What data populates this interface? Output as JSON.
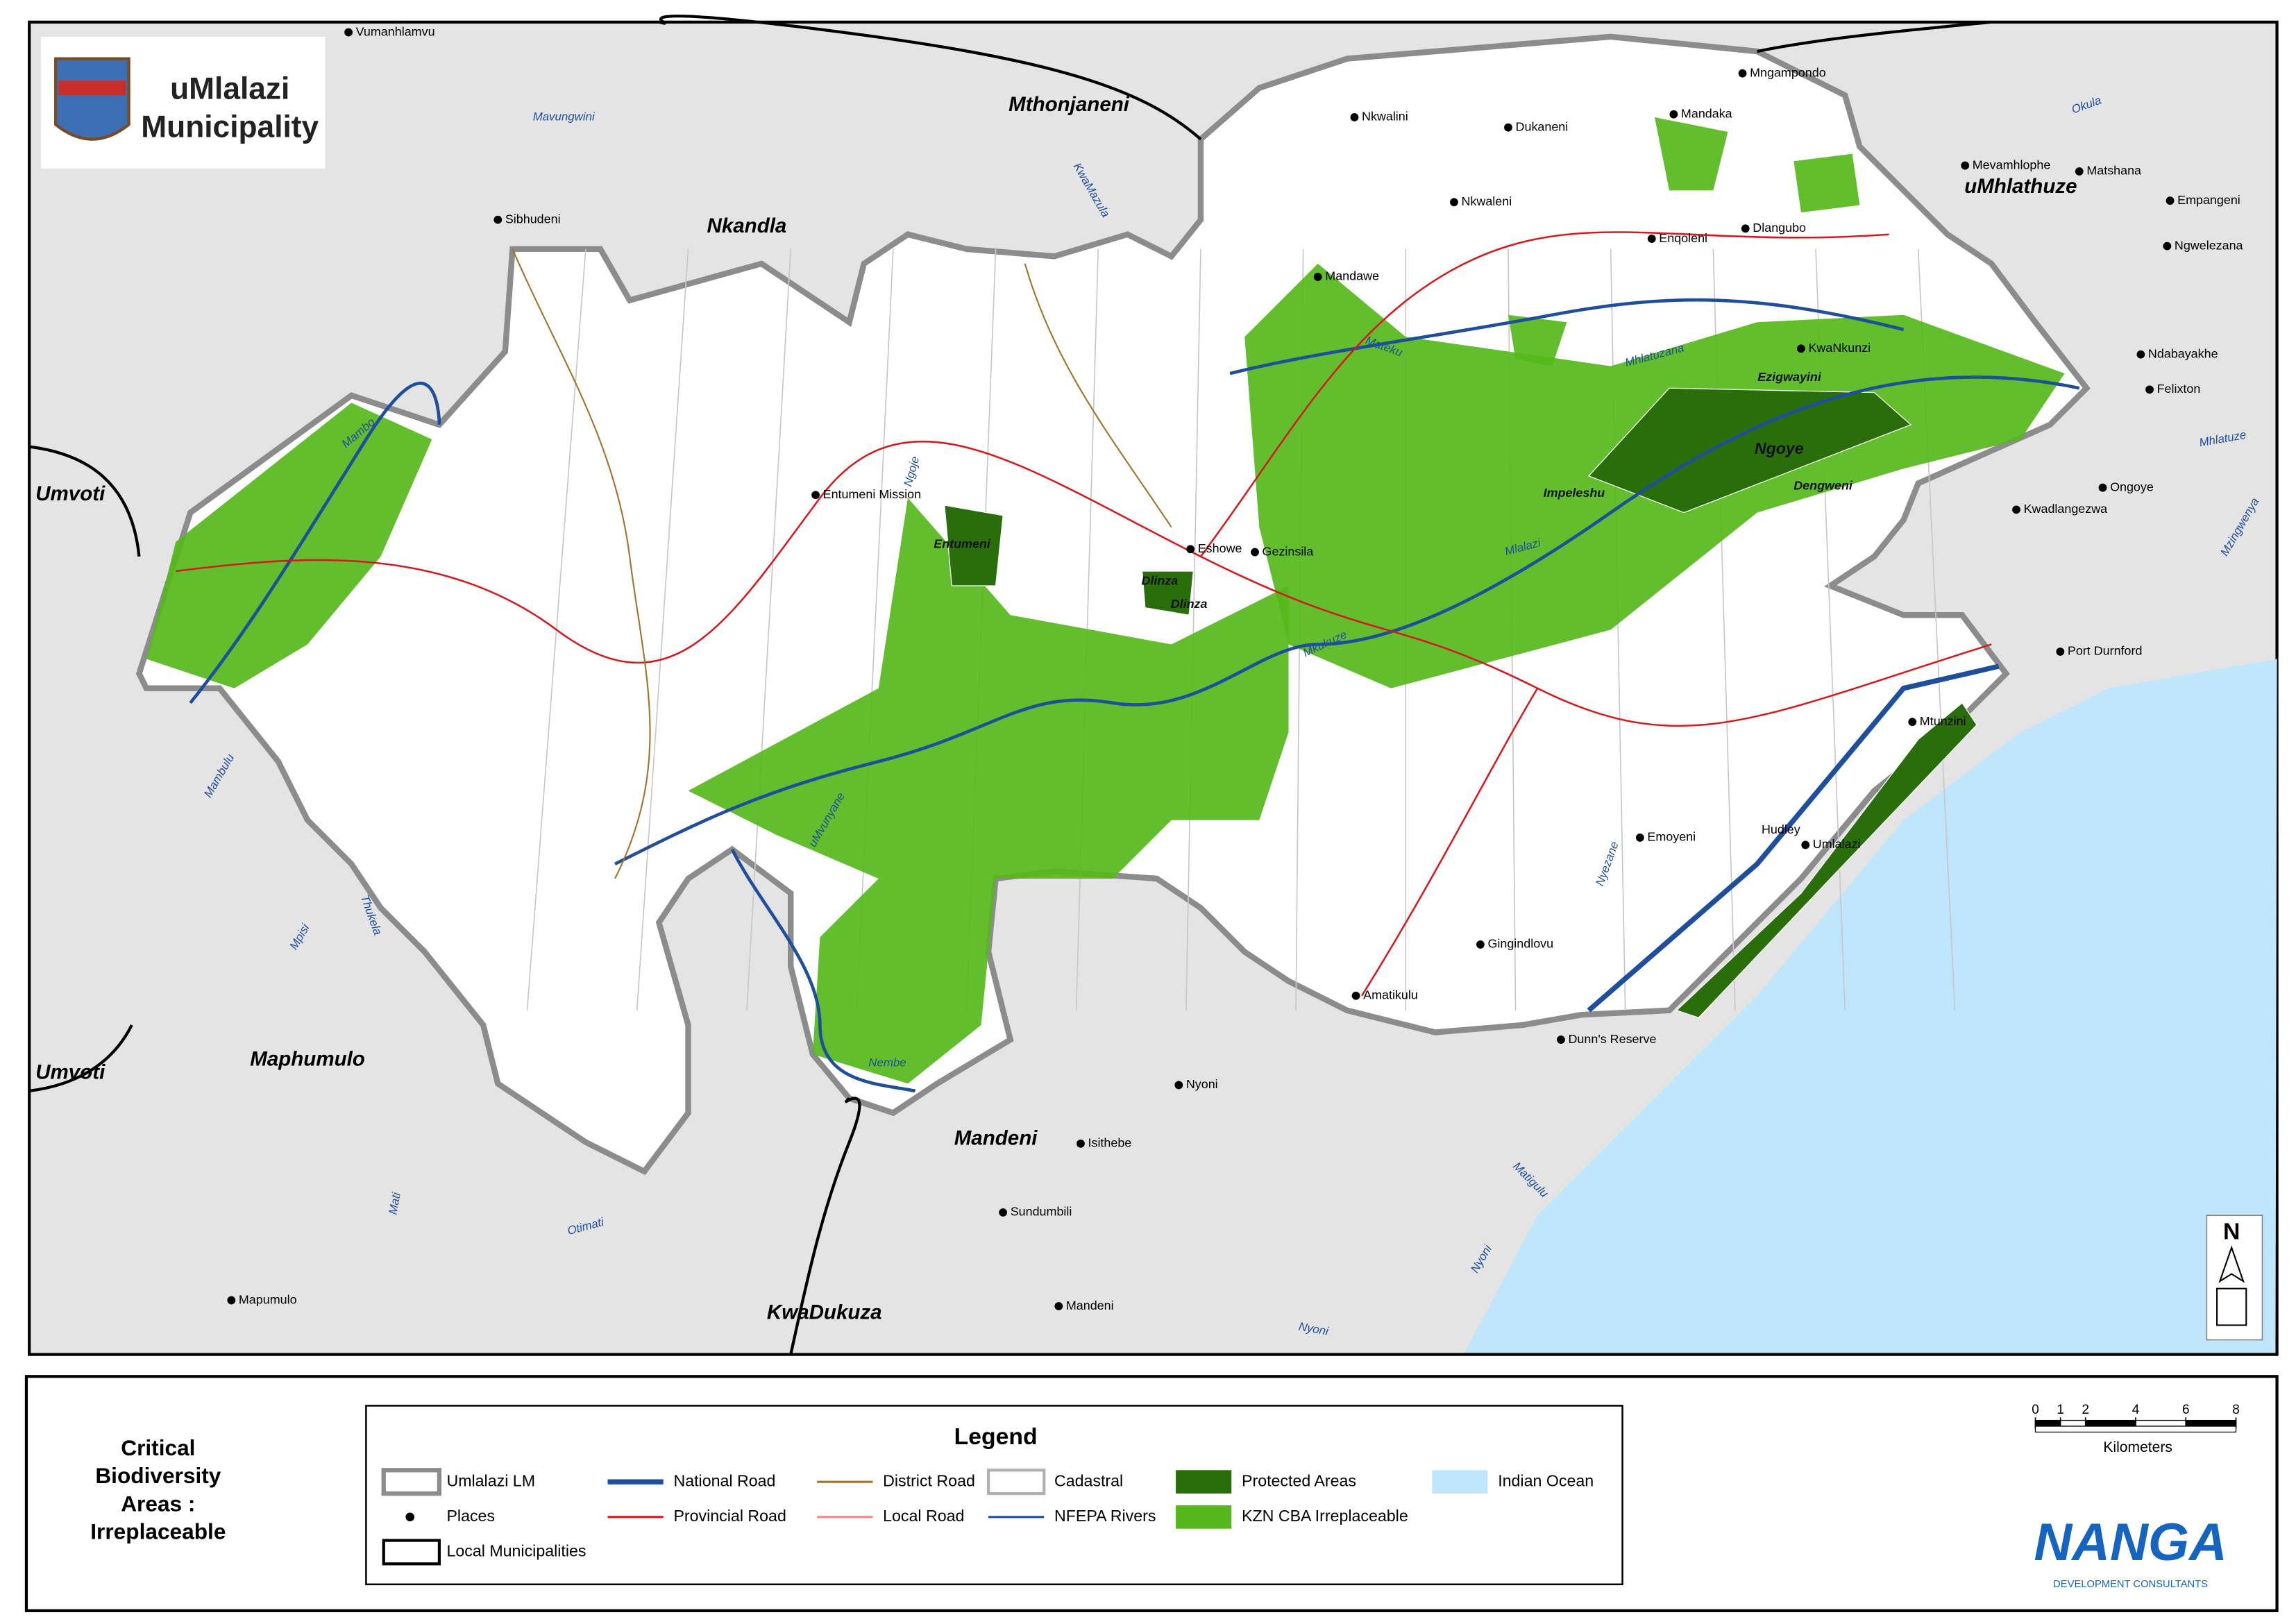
{
  "logo": {
    "title": "uMlalazi",
    "subtitle": "Municipality"
  },
  "map": {
    "municipalities": [
      "Mthonjaneni",
      "Nkandla",
      "uMhlathuze",
      "Umvoti",
      "Umvoti",
      "Maphumulo",
      "Mandeni",
      "KwaDukuza"
    ],
    "places": [
      "Vumanhlamvu",
      "Sibhudeni",
      "Nkwalini",
      "Dukaneni",
      "Mngampondo",
      "Mandaka",
      "Nkwaleni",
      "Enqoleni",
      "Dlangubo",
      "Mandawe",
      "KwaNkunzi",
      "Entumeni Mission",
      "Eshowe",
      "Gezinsila",
      "Mevamhlophe",
      "Matshana",
      "Empangeni",
      "Ngwelezana",
      "Ndabayakhe",
      "Felixton",
      "Ongoye",
      "Kwadlangezwa",
      "Port Durnford",
      "Mtunzini",
      "Emoyeni",
      "Hudley",
      "Umlalazi",
      "Gingindlovu",
      "Amatikulu",
      "Dunn's Reserve",
      "Nyoni",
      "Isithebe",
      "Sundumbili",
      "Mandeni",
      "Mapumulo"
    ],
    "rivers": [
      "Mavungwini",
      "KwaMazula",
      "Okula",
      "Mhlatuze",
      "Mzingwenya",
      "Mateku",
      "Mhlatuzana",
      "Mlalazi",
      "Mkukuze",
      "Ngoje",
      "Mambo",
      "Mambulu",
      "Thukela",
      "Mpisi",
      "uMvunyane",
      "Nembe",
      "Nyezane",
      "Matigulu",
      "Otimati",
      "Mati",
      "Nyoni",
      "Nyoni"
    ],
    "area_labels": [
      "Entumeni",
      "Dlinza",
      "Dlinza",
      "Ngoye",
      "Ezigwayini",
      "Impeleshu",
      "Dengweni"
    ]
  },
  "map_title": [
    "Critical",
    "Biodiversity",
    "Areas :",
    "Irreplaceable"
  ],
  "legend": {
    "title": "Legend",
    "items": [
      {
        "label": "Umlalazi LM",
        "color": "#8c8c8c"
      },
      {
        "label": "Places",
        "color": "#000000"
      },
      {
        "label": "Local Municipalities",
        "color": "#000000"
      },
      {
        "label": "National Road",
        "color": "#1f4e9c"
      },
      {
        "label": "Provincial Road",
        "color": "#d7191c"
      },
      {
        "label": "District Road",
        "color": "#a0742c"
      },
      {
        "label": "Local Road",
        "color": "#f08a8a"
      },
      {
        "label": "Cadastral",
        "color": "#b0b0b0"
      },
      {
        "label": "NFEPA Rivers",
        "color": "#1f4e9c"
      },
      {
        "label": "Protected Areas",
        "color": "#2a6e0c"
      },
      {
        "label": "KZN CBA Irreplaceable",
        "color": "#55b81a"
      },
      {
        "label": "Indian Ocean",
        "color": "#bfe6fa"
      }
    ]
  },
  "scale_bar": {
    "ticks": [
      0,
      1,
      2,
      4,
      6,
      8
    ],
    "unit": "Kilometers"
  },
  "north_arrow": "N",
  "company": {
    "name": "NANGA",
    "tagline": "DEVELOPMENT CONSULTANTS"
  }
}
